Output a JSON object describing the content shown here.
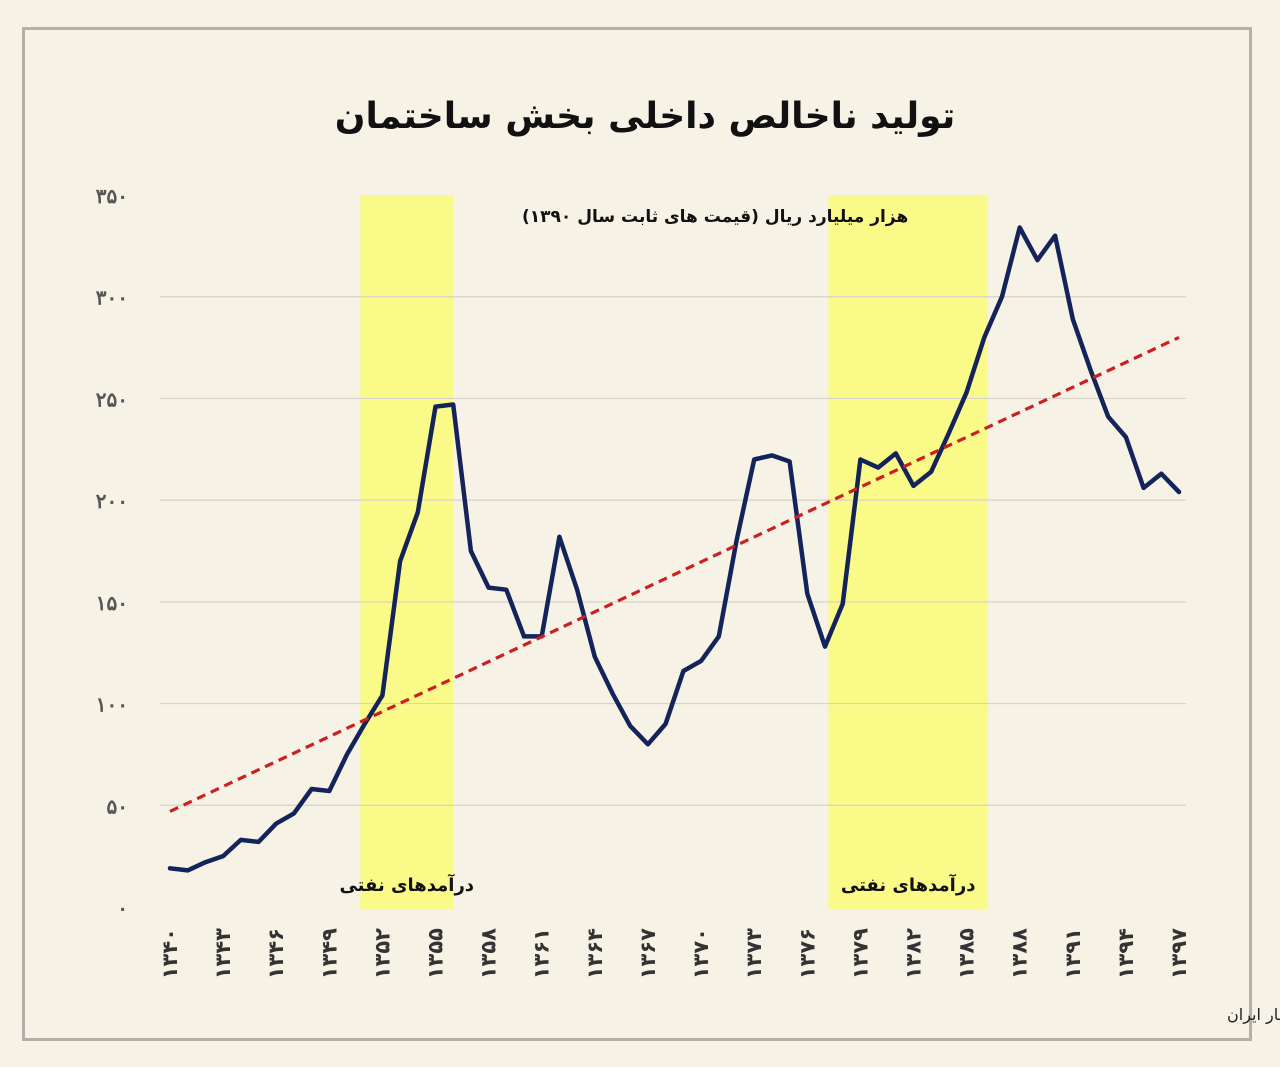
{
  "chart_data": {
    "type": "line",
    "title": "تولید ناخالص داخلی بخش ساختمان",
    "ylabel": "هزار میلیارد ریال (قیمت های ثابت سال ۱۳۹۰)",
    "source": "تحلیل و استنتاج: احسان سلطانی بر اساس داده های مرکز آمار ایران",
    "xlim": [
      1340,
      1397
    ],
    "ylim": [
      0,
      350
    ],
    "grid": true,
    "y_ticks": [
      {
        "value": 0,
        "label": "۰"
      },
      {
        "value": 50,
        "label": "۵۰"
      },
      {
        "value": 100,
        "label": "۱۰۰"
      },
      {
        "value": 150,
        "label": "۱۵۰"
      },
      {
        "value": 200,
        "label": "۲۰۰"
      },
      {
        "value": 250,
        "label": "۲۵۰"
      },
      {
        "value": 300,
        "label": "۳۰۰"
      },
      {
        "value": 350,
        "label": "۳۵۰"
      }
    ],
    "x_ticks": [
      {
        "value": 1340,
        "label": "۱۳۴۰"
      },
      {
        "value": 1343,
        "label": "۱۳۴۳"
      },
      {
        "value": 1346,
        "label": "۱۳۴۶"
      },
      {
        "value": 1349,
        "label": "۱۳۴۹"
      },
      {
        "value": 1352,
        "label": "۱۳۵۲"
      },
      {
        "value": 1355,
        "label": "۱۳۵۵"
      },
      {
        "value": 1358,
        "label": "۱۳۵۸"
      },
      {
        "value": 1361,
        "label": "۱۳۶۱"
      },
      {
        "value": 1364,
        "label": "۱۳۶۴"
      },
      {
        "value": 1367,
        "label": "۱۳۶۷"
      },
      {
        "value": 1370,
        "label": "۱۳۷۰"
      },
      {
        "value": 1373,
        "label": "۱۳۷۳"
      },
      {
        "value": 1376,
        "label": "۱۳۷۶"
      },
      {
        "value": 1379,
        "label": "۱۳۷۹"
      },
      {
        "value": 1382,
        "label": "۱۳۸۲"
      },
      {
        "value": 1385,
        "label": "۱۳۸۵"
      },
      {
        "value": 1388,
        "label": "۱۳۸۸"
      },
      {
        "value": 1391,
        "label": "۱۳۹۱"
      },
      {
        "value": 1394,
        "label": "۱۳۹۴"
      },
      {
        "value": 1397,
        "label": "۱۳۹۷"
      }
    ],
    "series": [
      {
        "color": "#14235a",
        "x": [
          1340,
          1341,
          1342,
          1343,
          1344,
          1345,
          1346,
          1347,
          1348,
          1349,
          1350,
          1351,
          1352,
          1353,
          1354,
          1355,
          1356,
          1357,
          1358,
          1359,
          1360,
          1361,
          1362,
          1363,
          1364,
          1365,
          1366,
          1367,
          1368,
          1369,
          1370,
          1371,
          1372,
          1373,
          1374,
          1375,
          1376,
          1377,
          1378,
          1379,
          1380,
          1381,
          1382,
          1383,
          1384,
          1385,
          1386,
          1387,
          1388,
          1389,
          1390,
          1391,
          1392,
          1393,
          1394,
          1395,
          1396,
          1397
        ],
        "y": [
          19,
          18,
          22,
          25,
          33,
          32,
          41,
          46,
          58,
          57,
          75,
          90,
          104,
          170,
          194,
          246,
          247,
          175,
          157,
          156,
          133,
          133,
          182,
          156,
          123,
          105,
          89,
          80,
          90,
          116,
          121,
          133,
          180,
          220,
          222,
          219,
          154,
          128,
          149,
          220,
          216,
          223,
          207,
          214,
          233,
          253,
          280,
          300,
          334,
          318,
          330,
          289,
          264,
          241,
          231,
          206,
          213,
          204
        ]
      },
      {
        "name": "trend",
        "color": "#cc2020",
        "dashed": true,
        "x": [
          1340,
          1397
        ],
        "y": [
          47,
          280
        ]
      }
    ],
    "shaded_periods": [
      {
        "from": 1350.75,
        "to": 1356,
        "label": "درآمدهای نفتی",
        "color": "#fafa88"
      },
      {
        "from": 1377.2,
        "to": 1386.2,
        "label": "درآمدهای نفتی",
        "color": "#fafa88"
      }
    ]
  }
}
